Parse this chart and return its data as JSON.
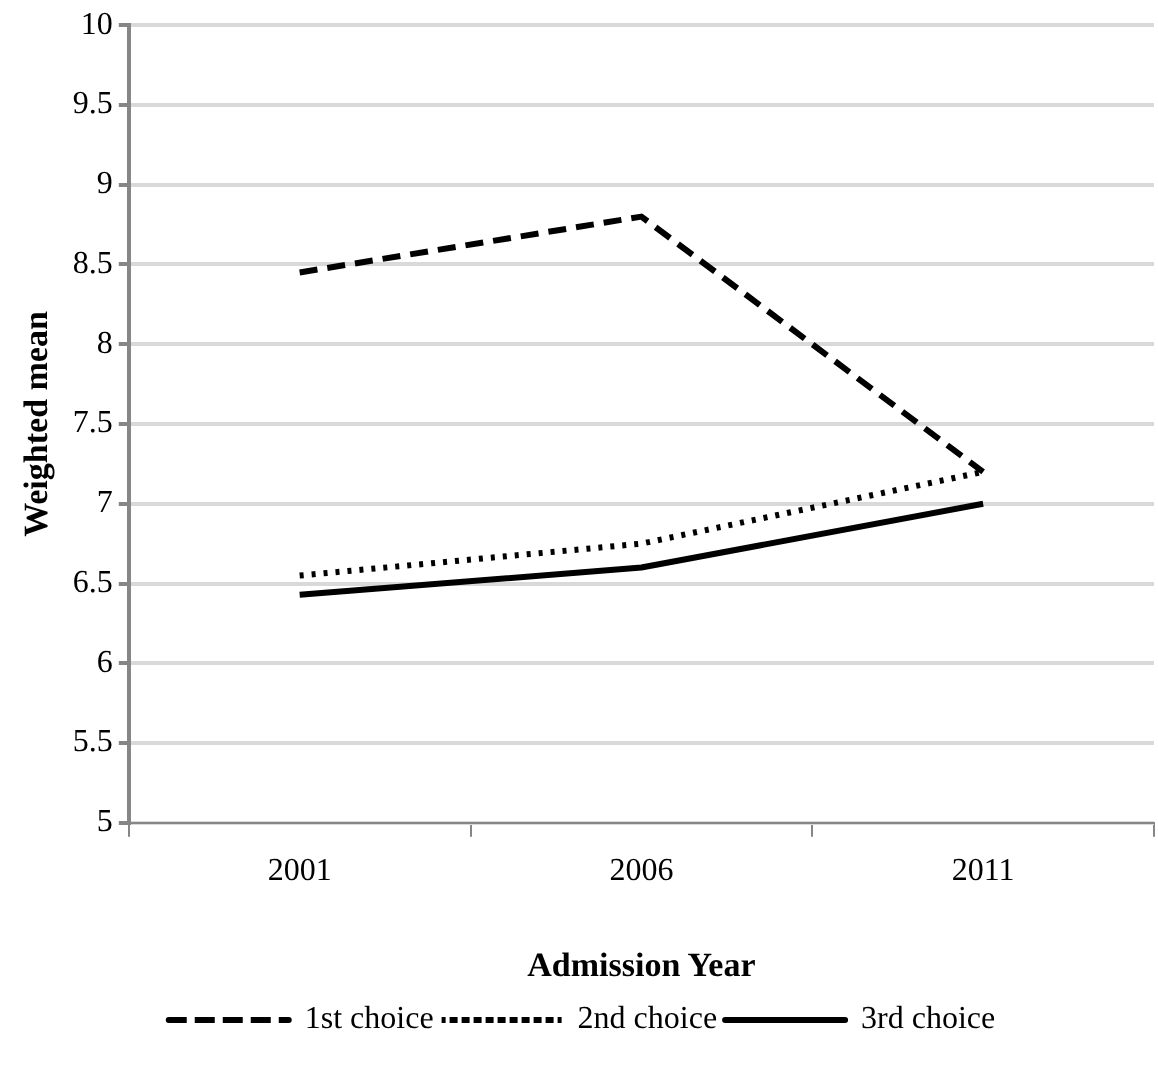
{
  "chart_data": {
    "type": "line",
    "xlabel": "Admission Year",
    "ylabel": "Weighted mean",
    "categories": [
      "2001",
      "2006",
      "2011"
    ],
    "series": [
      {
        "name": "1st choice",
        "color": "#000000",
        "line_style": "dashed",
        "values": [
          8.45,
          8.8,
          7.2
        ]
      },
      {
        "name": "2nd choice",
        "color": "#000000",
        "line_style": "dotted",
        "values": [
          6.55,
          6.75,
          7.2
        ]
      },
      {
        "name": "3rd choice",
        "color": "#000000",
        "line_style": "solid",
        "values": [
          6.43,
          6.6,
          7.0
        ]
      }
    ],
    "ylim": [
      5,
      10
    ],
    "yticks": [
      5,
      5.5,
      6,
      6.5,
      7,
      7.5,
      8,
      8.5,
      9,
      9.5,
      10
    ],
    "grid": "y",
    "legend": "bottom",
    "marker": "none"
  }
}
